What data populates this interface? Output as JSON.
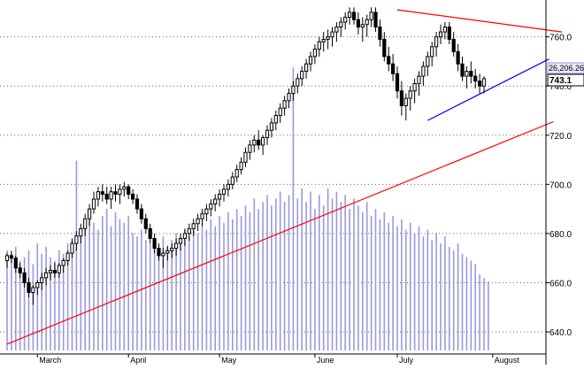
{
  "chart_data": {
    "type": "candlestick",
    "title": "",
    "xlabel": "",
    "ylabel": "",
    "ylim": [
      631,
      775
    ],
    "y_ticks": [
      640,
      660,
      680,
      700,
      720,
      740,
      760
    ],
    "y_tick_labels": [
      "640.0",
      "660.0",
      "680.0",
      "700.0",
      "720.0",
      "740.0",
      "760.0"
    ],
    "x_month_labels": [
      {
        "label": "March",
        "bar": 7
      },
      {
        "label": "April",
        "bar": 28
      },
      {
        "label": "May",
        "bar": 49
      },
      {
        "label": "June",
        "bar": 71
      },
      {
        "label": "July",
        "bar": 90
      },
      {
        "label": "August",
        "bar": 112
      }
    ],
    "grid": true,
    "price_labels": {
      "volume_value": "26,206.26",
      "last_price": "743.1"
    },
    "colors": {
      "candle": "#000000",
      "volume": "#9999dd",
      "trend_up": "#ff0000",
      "trend_down_resistance": "#ff0000",
      "channel_support": "#0000ff"
    },
    "candles": [
      [
        669,
        672,
        666,
        671
      ],
      [
        671,
        673,
        668,
        670
      ],
      [
        670,
        671,
        664,
        666
      ],
      [
        666,
        668,
        662,
        664
      ],
      [
        664,
        666,
        658,
        660
      ],
      [
        660,
        662,
        654,
        656
      ],
      [
        656,
        659,
        651,
        658
      ],
      [
        658,
        661,
        655,
        660
      ],
      [
        660,
        664,
        657,
        662
      ],
      [
        662,
        666,
        659,
        664
      ],
      [
        664,
        667,
        661,
        665
      ],
      [
        665,
        668,
        662,
        664
      ],
      [
        664,
        668,
        662,
        667
      ],
      [
        667,
        670,
        664,
        669
      ],
      [
        669,
        673,
        667,
        672
      ],
      [
        672,
        678,
        670,
        676
      ],
      [
        676,
        681,
        673,
        679
      ],
      [
        679,
        684,
        676,
        682
      ],
      [
        682,
        688,
        679,
        686
      ],
      [
        686,
        692,
        683,
        690
      ],
      [
        690,
        697,
        688,
        694
      ],
      [
        694,
        699,
        691,
        697
      ],
      [
        697,
        700,
        693,
        696
      ],
      [
        696,
        699,
        692,
        694
      ],
      [
        694,
        699,
        690,
        697
      ],
      [
        697,
        700,
        693,
        696
      ],
      [
        696,
        700,
        692,
        698
      ],
      [
        698,
        701,
        695,
        699
      ],
      [
        699,
        700,
        694,
        696
      ],
      [
        696,
        698,
        692,
        694
      ],
      [
        694,
        696,
        688,
        690
      ],
      [
        690,
        692,
        684,
        686
      ],
      [
        686,
        688,
        680,
        682
      ],
      [
        682,
        684,
        676,
        678
      ],
      [
        678,
        680,
        672,
        674
      ],
      [
        674,
        676,
        669,
        671
      ],
      [
        671,
        674,
        666,
        672
      ],
      [
        672,
        675,
        669,
        673
      ],
      [
        673,
        676,
        670,
        674
      ],
      [
        674,
        678,
        671,
        676
      ],
      [
        676,
        680,
        673,
        678
      ],
      [
        678,
        682,
        675,
        680
      ],
      [
        680,
        684,
        677,
        682
      ],
      [
        682,
        686,
        679,
        684
      ],
      [
        684,
        688,
        681,
        686
      ],
      [
        686,
        690,
        683,
        688
      ],
      [
        688,
        692,
        685,
        690
      ],
      [
        690,
        694,
        687,
        692
      ],
      [
        692,
        696,
        689,
        694
      ],
      [
        694,
        698,
        691,
        696
      ],
      [
        696,
        700,
        693,
        698
      ],
      [
        698,
        702,
        695,
        700
      ],
      [
        700,
        705,
        698,
        703
      ],
      [
        703,
        708,
        701,
        706
      ],
      [
        706,
        711,
        704,
        709
      ],
      [
        709,
        715,
        707,
        713
      ],
      [
        713,
        718,
        710,
        716
      ],
      [
        716,
        720,
        713,
        718
      ],
      [
        718,
        722,
        714,
        716
      ],
      [
        716,
        720,
        712,
        719
      ],
      [
        719,
        724,
        716,
        722
      ],
      [
        722,
        727,
        719,
        725
      ],
      [
        725,
        730,
        722,
        728
      ],
      [
        728,
        733,
        725,
        731
      ],
      [
        731,
        736,
        728,
        734
      ],
      [
        734,
        739,
        731,
        737
      ],
      [
        737,
        742,
        734,
        740
      ],
      [
        740,
        745,
        737,
        743
      ],
      [
        743,
        748,
        740,
        746
      ],
      [
        746,
        751,
        743,
        749
      ],
      [
        749,
        754,
        746,
        752
      ],
      [
        752,
        757,
        749,
        755
      ],
      [
        755,
        760,
        752,
        758
      ],
      [
        758,
        762,
        754,
        759
      ],
      [
        759,
        763,
        755,
        760
      ],
      [
        760,
        764,
        756,
        762
      ],
      [
        762,
        766,
        758,
        764
      ],
      [
        764,
        768,
        760,
        766
      ],
      [
        766,
        770,
        763,
        768
      ],
      [
        768,
        772,
        765,
        770
      ],
      [
        770,
        772,
        765,
        767
      ],
      [
        767,
        770,
        761,
        764
      ],
      [
        764,
        768,
        758,
        765
      ],
      [
        765,
        769,
        760,
        767
      ],
      [
        767,
        772,
        764,
        770
      ],
      [
        770,
        772,
        762,
        764
      ],
      [
        764,
        767,
        756,
        759
      ],
      [
        759,
        762,
        750,
        752
      ],
      [
        752,
        756,
        746,
        749
      ],
      [
        749,
        753,
        742,
        745
      ],
      [
        745,
        748,
        735,
        738
      ],
      [
        738,
        742,
        728,
        732
      ],
      [
        732,
        737,
        726,
        735
      ],
      [
        735,
        740,
        730,
        738
      ],
      [
        738,
        743,
        733,
        741
      ],
      [
        741,
        746,
        736,
        744
      ],
      [
        744,
        750,
        740,
        748
      ],
      [
        748,
        754,
        744,
        752
      ],
      [
        752,
        758,
        748,
        756
      ],
      [
        756,
        762,
        752,
        760
      ],
      [
        760,
        765,
        757,
        762
      ],
      [
        762,
        766,
        759,
        764
      ],
      [
        764,
        766,
        757,
        759
      ],
      [
        759,
        762,
        752,
        754
      ],
      [
        754,
        757,
        746,
        749
      ],
      [
        749,
        752,
        742,
        744
      ],
      [
        744,
        748,
        739,
        746
      ],
      [
        746,
        750,
        741,
        744
      ],
      [
        744,
        747,
        739,
        742
      ],
      [
        742,
        745,
        737,
        740
      ],
      [
        740,
        744,
        737,
        743
      ]
    ],
    "volumes": [
      29,
      28,
      30,
      26,
      27,
      29,
      25,
      31,
      28,
      30,
      27,
      26,
      29,
      28,
      31,
      32,
      55,
      34,
      36,
      38,
      37,
      35,
      39,
      41,
      36,
      40,
      38,
      37,
      39,
      34,
      33,
      35,
      32,
      31,
      30,
      29,
      33,
      30,
      32,
      34,
      31,
      35,
      33,
      36,
      34,
      37,
      35,
      38,
      36,
      39,
      37,
      40,
      38,
      41,
      39,
      42,
      40,
      44,
      41,
      43,
      45,
      42,
      44,
      46,
      43,
      45,
      82,
      44,
      47,
      43,
      46,
      41,
      45,
      42,
      47,
      44,
      46,
      43,
      45,
      41,
      44,
      42,
      40,
      43,
      39,
      41,
      38,
      40,
      37,
      39,
      36,
      38,
      35,
      37,
      34,
      36,
      33,
      35,
      32,
      34,
      31,
      33,
      30,
      29,
      31,
      28,
      27,
      26,
      25,
      22,
      21,
      20
    ],
    "trendlines": [
      {
        "name": "",
        "from": [
          0,
          635
        ],
        "to": [
          126,
          725.5
        ]
      },
      {
        "name": "",
        "from": [
          90,
          771
        ],
        "to": [
          128,
          762
        ]
      },
      {
        "name": "",
        "from": [
          97,
          726
        ],
        "to": [
          125,
          751
        ]
      }
    ]
  }
}
